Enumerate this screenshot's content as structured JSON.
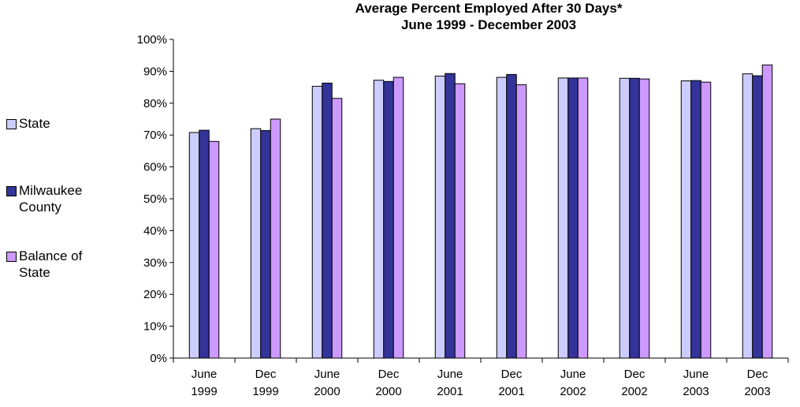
{
  "chart_data": {
    "type": "bar",
    "title": "Average Percent Employed After 30 Days*",
    "subtitle": "June 1999 - December 2003",
    "categories": [
      [
        "June",
        "1999"
      ],
      [
        "Dec",
        "1999"
      ],
      [
        "June",
        "2000"
      ],
      [
        "Dec",
        "2000"
      ],
      [
        "June",
        "2001"
      ],
      [
        "Dec",
        "2001"
      ],
      [
        "June",
        "2002"
      ],
      [
        "Dec",
        "2002"
      ],
      [
        "June",
        "2003"
      ],
      [
        "Dec",
        "2003"
      ]
    ],
    "series": [
      {
        "name": "State",
        "color": "#ccccff",
        "values": [
          70.8,
          72.0,
          85.3,
          87.2,
          88.5,
          88.1,
          87.9,
          87.8,
          87.0,
          89.2
        ]
      },
      {
        "name": "Milwaukee County",
        "color": "#333399",
        "values": [
          71.5,
          71.4,
          86.3,
          86.8,
          89.3,
          89.0,
          87.9,
          87.8,
          87.1,
          88.6
        ]
      },
      {
        "name": "Balance of State",
        "color": "#cc99ff",
        "values": [
          68.0,
          75.0,
          81.5,
          88.1,
          86.1,
          85.8,
          87.9,
          87.6,
          86.6,
          92.0
        ]
      }
    ],
    "ylim": [
      0,
      100
    ],
    "yticks": [
      "0%",
      "10%",
      "20%",
      "30%",
      "40%",
      "50%",
      "60%",
      "70%",
      "80%",
      "90%",
      "100%"
    ],
    "legend": [
      "State",
      "Milwaukee County",
      "Balance of State"
    ],
    "legend_position": "left",
    "grid": false
  }
}
